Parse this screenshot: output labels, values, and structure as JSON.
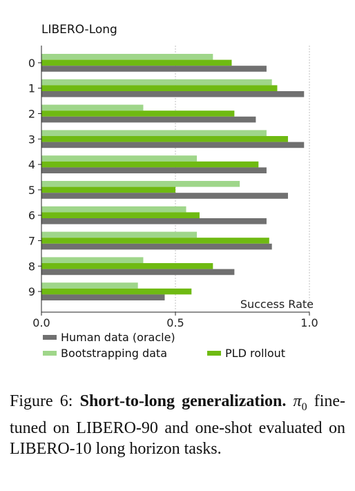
{
  "chart_data": {
    "type": "bar",
    "orientation": "horizontal",
    "title": "LIBERO-Long",
    "xlabel": "Success Rate",
    "xlim": [
      0,
      1
    ],
    "xticks": [
      "0.0",
      "0.5",
      "1.0"
    ],
    "categories": [
      "0",
      "1",
      "2",
      "3",
      "4",
      "5",
      "6",
      "7",
      "8",
      "9"
    ],
    "series": [
      {
        "name": "Bootstrapping data",
        "color": "#9fd68a",
        "values": [
          0.64,
          0.86,
          0.38,
          0.84,
          0.58,
          0.74,
          0.54,
          0.58,
          0.38,
          0.36
        ]
      },
      {
        "name": "PLD rollout",
        "color": "#6fba12",
        "values": [
          0.71,
          0.88,
          0.72,
          0.92,
          0.81,
          0.5,
          0.59,
          0.85,
          0.64,
          0.56
        ]
      },
      {
        "name": "Human data (oracle)",
        "color": "#707070",
        "values": [
          0.84,
          0.98,
          0.8,
          0.98,
          0.84,
          0.92,
          0.84,
          0.86,
          0.72,
          0.46
        ]
      }
    ],
    "grid": "x-dotted",
    "legend_placement": "bottom"
  },
  "caption": {
    "figure_label": "Figure 6:",
    "bold_text": "Short-to-long generalization.",
    "math_symbol": "π",
    "math_subscript": "0",
    "body_text": "fine-tuned on LIBERO-90 and one-shot evaluated on LIBERO-10 long horizon tasks."
  }
}
